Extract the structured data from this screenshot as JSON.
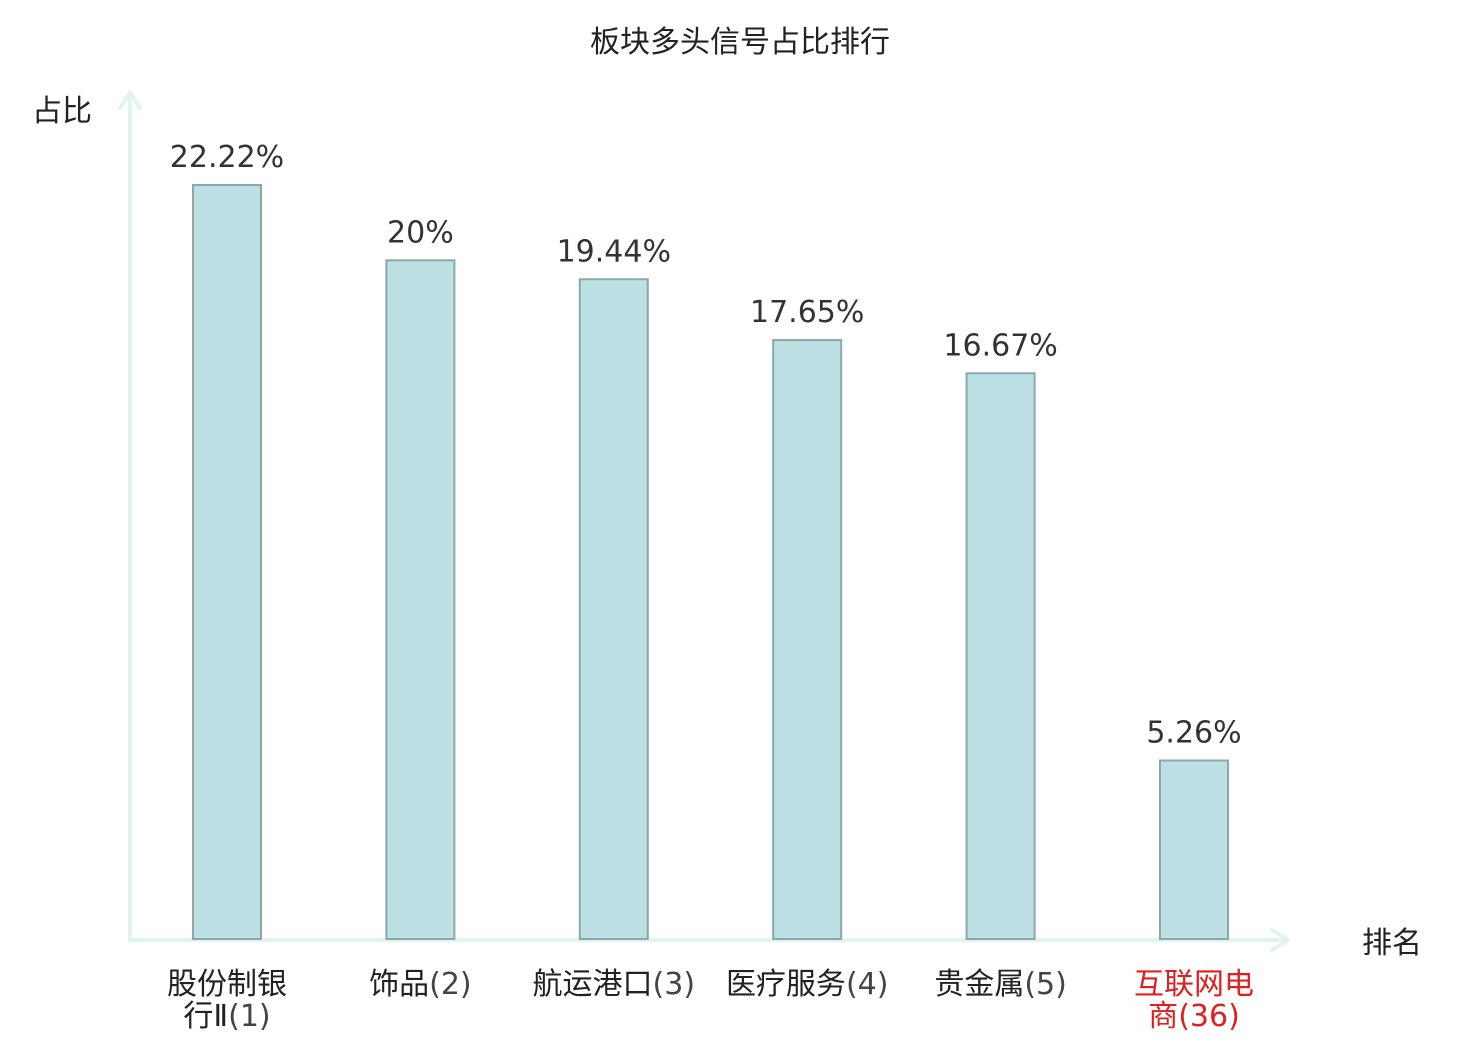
{
  "chart_data": {
    "type": "bar",
    "title": "板块多头信号占比排行",
    "xlabel": "排名",
    "ylabel": "占比",
    "categories": [
      {
        "name_lines": [
          "股份制银",
          "行Ⅱ"
        ],
        "rank": "(1)",
        "highlight": false
      },
      {
        "name_lines": [
          "饰品"
        ],
        "rank": "(2)",
        "highlight": false
      },
      {
        "name_lines": [
          "航运港口"
        ],
        "rank": "(3)",
        "highlight": false
      },
      {
        "name_lines": [
          "医疗服务"
        ],
        "rank": "(4)",
        "highlight": false
      },
      {
        "name_lines": [
          "贵金属"
        ],
        "rank": "(5)",
        "highlight": false
      },
      {
        "name_lines": [
          "互联网电",
          "商"
        ],
        "rank": "(36)",
        "highlight": true
      }
    ],
    "values": [
      22.22,
      20,
      19.44,
      17.65,
      16.67,
      5.26
    ],
    "value_labels": [
      "22.22%",
      "20%",
      "19.44%",
      "17.65%",
      "16.67%",
      "5.26%"
    ],
    "ylim": [
      0,
      25
    ],
    "grid": false,
    "legend": "none",
    "colors": {
      "bar_fill": "#bce0e3",
      "bar_stroke": "#8aa8aa",
      "axis": "#e2f4f1",
      "text": "#333333",
      "label_text": "#222222",
      "rank_text": "#444444",
      "highlight": "#e02020"
    }
  }
}
